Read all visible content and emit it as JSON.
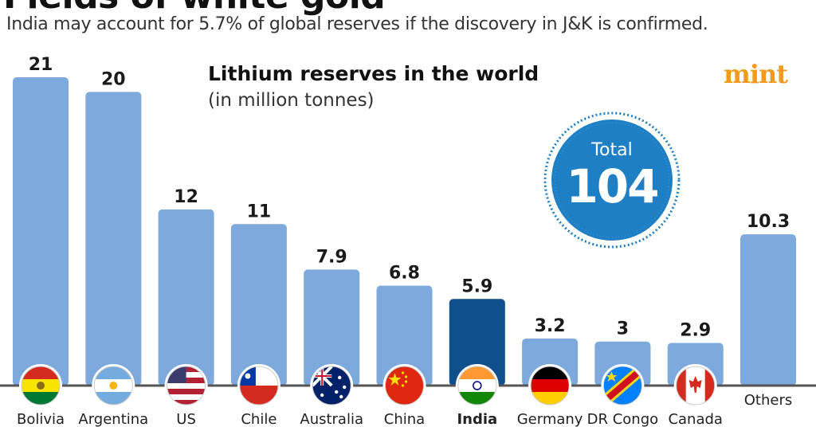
{
  "header": {
    "headline": "Fields of white gold",
    "subheadline": "India may account for 5.7% of global reserves if the discovery in J&K is confirmed."
  },
  "brand": {
    "name": "mint",
    "color": "#f29a1f"
  },
  "total_badge": {
    "label": "Total",
    "value": "104",
    "color": "#1e7fc4"
  },
  "chart_data": {
    "type": "bar",
    "title": "Lithium reserves in the world",
    "subtitle": "(in million tonnes)",
    "categories": [
      "Bolivia",
      "Argentina",
      "US",
      "Chile",
      "Australia",
      "China",
      "India",
      "Germany",
      "DR Congo",
      "Canada",
      "Others"
    ],
    "values": [
      21,
      20,
      12,
      11,
      7.9,
      6.8,
      5.9,
      3.2,
      3,
      2.9,
      10.3
    ],
    "value_labels": [
      "21",
      "20",
      "12",
      "11",
      "7.9",
      "6.8",
      "5.9",
      "3.2",
      "3",
      "2.9",
      "10.3"
    ],
    "highlight": "India",
    "flags": [
      "bolivia-flag-icon",
      "argentina-flag-icon",
      "us-flag-icon",
      "chile-flag-icon",
      "australia-flag-icon",
      "china-flag-icon",
      "india-flag-icon",
      "germany-flag-icon",
      "dr-congo-flag-icon",
      "canada-flag-icon",
      null
    ],
    "colors": {
      "bar": "#7da9dc",
      "highlight_bar": "#0f4f8c",
      "baseline": "#555555"
    },
    "ylim": [
      0,
      21
    ],
    "grid": false,
    "xlabel": "",
    "ylabel": ""
  }
}
